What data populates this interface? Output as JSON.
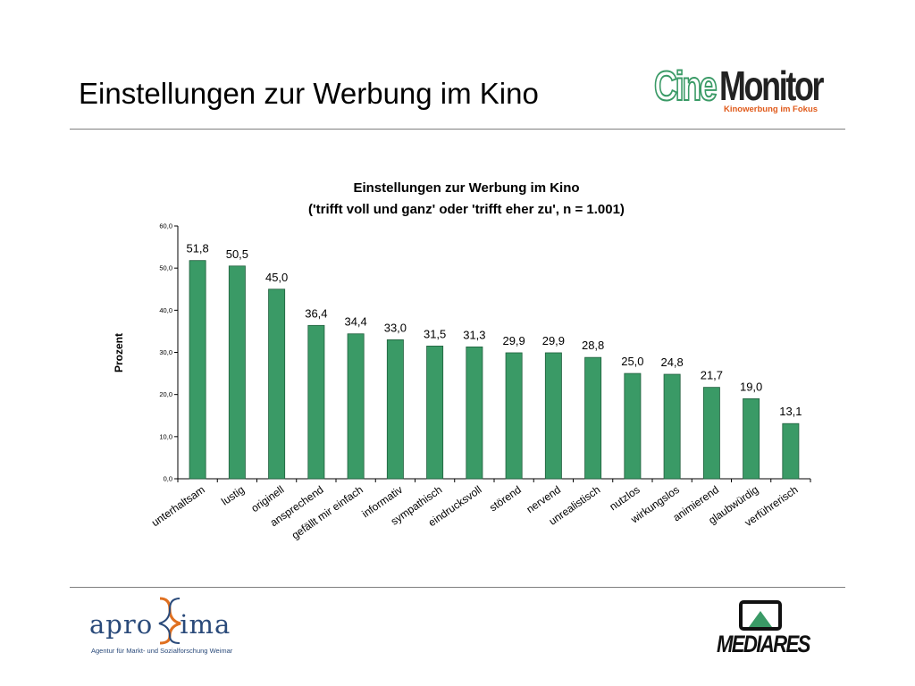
{
  "slide": {
    "title": "Einstellungen zur Werbung im Kino"
  },
  "logos": {
    "cinemonitor": {
      "cine": "Cine",
      "monitor": "Monitor",
      "tagline": "Kinowerbung im Fokus"
    },
    "aproxima": {
      "left": "apro",
      "right": "ima",
      "subtitle": "Agentur für Markt- und Sozialforschung Weimar"
    },
    "mediares": {
      "word": "MEDIARES"
    }
  },
  "colors": {
    "bar": "#3a9a66",
    "bar_stroke": "#1f5e3c",
    "rule": "#7f7f7f",
    "tagline": "#e05a1a"
  },
  "chart_data": {
    "type": "bar",
    "title": "Einstellungen zur Werbung im Kino",
    "subtitle": "('trifft voll und ganz' oder 'trifft eher zu', n = 1.001)",
    "ylabel": "Prozent",
    "xlabel": "",
    "ylim": [
      0,
      60
    ],
    "yticks": [
      0,
      10,
      20,
      30,
      40,
      50,
      60
    ],
    "ytick_labels": [
      "0,0",
      "10,0",
      "20,0",
      "30,0",
      "40,0",
      "50,0",
      "60,0"
    ],
    "grid": false,
    "legend": "none",
    "categories": [
      "unterhaltsam",
      "lustig",
      "originell",
      "ansprechend",
      "gefällt mir einfach",
      "informativ",
      "sympathisch",
      "eindrucksvoll",
      "störend",
      "nervend",
      "unrealistisch",
      "nutzlos",
      "wirkungslos",
      "animierend",
      "glaubwürdig",
      "verführerisch"
    ],
    "values": [
      51.8,
      50.5,
      45.0,
      36.4,
      34.4,
      33.0,
      31.5,
      31.3,
      29.9,
      29.9,
      28.8,
      25.0,
      24.8,
      21.7,
      19.0,
      13.1
    ],
    "value_labels": [
      "51,8",
      "50,5",
      "45,0",
      "36,4",
      "34,4",
      "33,0",
      "31,5",
      "31,3",
      "29,9",
      "29,9",
      "28,8",
      "25,0",
      "24,8",
      "21,7",
      "19,0",
      "13,1"
    ]
  }
}
